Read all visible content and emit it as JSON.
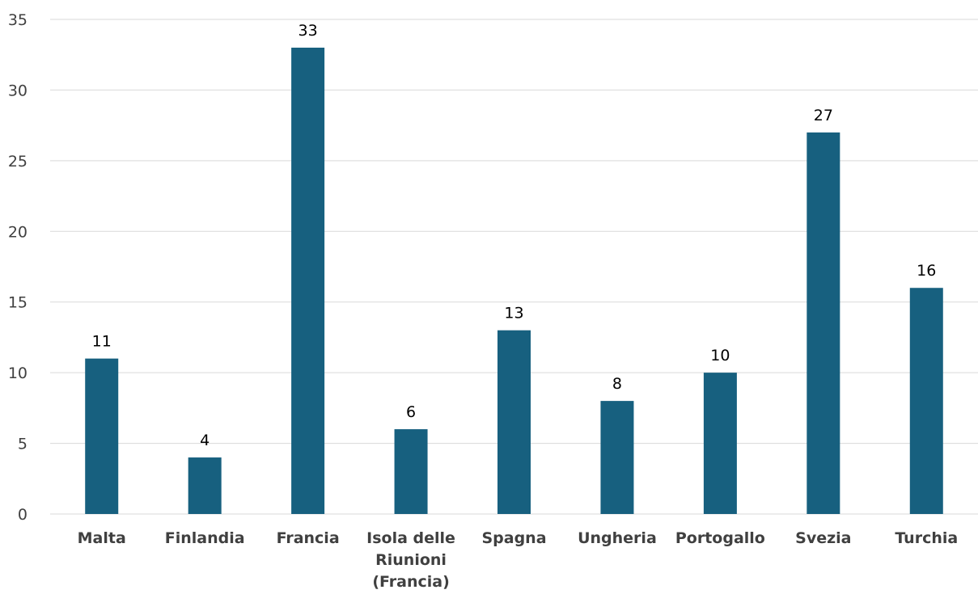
{
  "chart_data": {
    "type": "bar",
    "categories": [
      "Malta",
      "Finlandia",
      "Francia",
      "Isola delle Riunioni (Francia)",
      "Spagna",
      "Ungheria",
      "Portogallo",
      "Svezia",
      "Turchia"
    ],
    "category_lines": [
      [
        "Malta"
      ],
      [
        "Finlandia"
      ],
      [
        "Francia"
      ],
      [
        "Isola delle",
        "Riunioni",
        "(Francia)"
      ],
      [
        "Spagna"
      ],
      [
        "Ungheria"
      ],
      [
        "Portogallo"
      ],
      [
        "Svezia"
      ],
      [
        "Turchia"
      ]
    ],
    "values": [
      11,
      4,
      33,
      6,
      13,
      8,
      10,
      27,
      16
    ],
    "data_labels": [
      "11",
      "4",
      "33",
      "6",
      "13",
      "8",
      "10",
      "27",
      "16"
    ],
    "yticks": [
      0,
      5,
      10,
      15,
      20,
      25,
      30,
      35
    ],
    "ylim": [
      0,
      35
    ],
    "grid": true,
    "bar_color": "#17607f",
    "grid_color": "#d9d9d9",
    "title": "",
    "xlabel": "",
    "ylabel": ""
  }
}
